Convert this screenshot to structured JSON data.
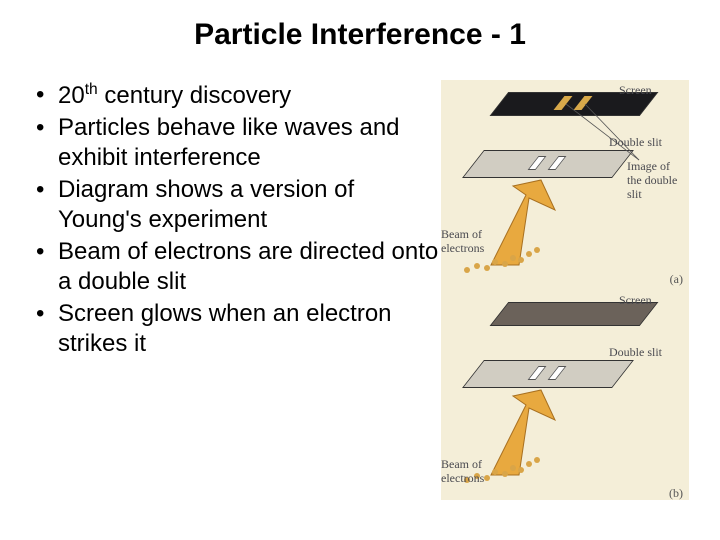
{
  "title": "Particle Interference - 1",
  "bullets": [
    "20<sup>th</sup> century discovery",
    "Particles behave like waves and exhibit interference",
    "Diagram shows a version of Young's experiment",
    "Beam of electrons are directed onto a double slit",
    "Screen glows when an electron strikes it"
  ],
  "figure": {
    "bg_color": "#f4eed8",
    "panel_a": {
      "screen_label": "Screen",
      "screen_color": "#1a1a1d",
      "screen_slit_color": "#d8a94a",
      "slit_label": "Double slit",
      "slit_color": "#d1cdc2",
      "image_label": "Image of the double slit",
      "beam_label": "Beam of electrons",
      "letter": "(a)"
    },
    "panel_b": {
      "screen_label": "Screen",
      "screen_color": "#6b625a",
      "slit_label": "Double slit",
      "slit_color": "#d1cdc2",
      "beam_label": "Beam of electrons",
      "letter": "(b)"
    },
    "arrow_color": "#e8a93f",
    "arrow_stroke": "#a87020",
    "electron_color": "#d9a548",
    "label_color": "#4a4a50"
  }
}
